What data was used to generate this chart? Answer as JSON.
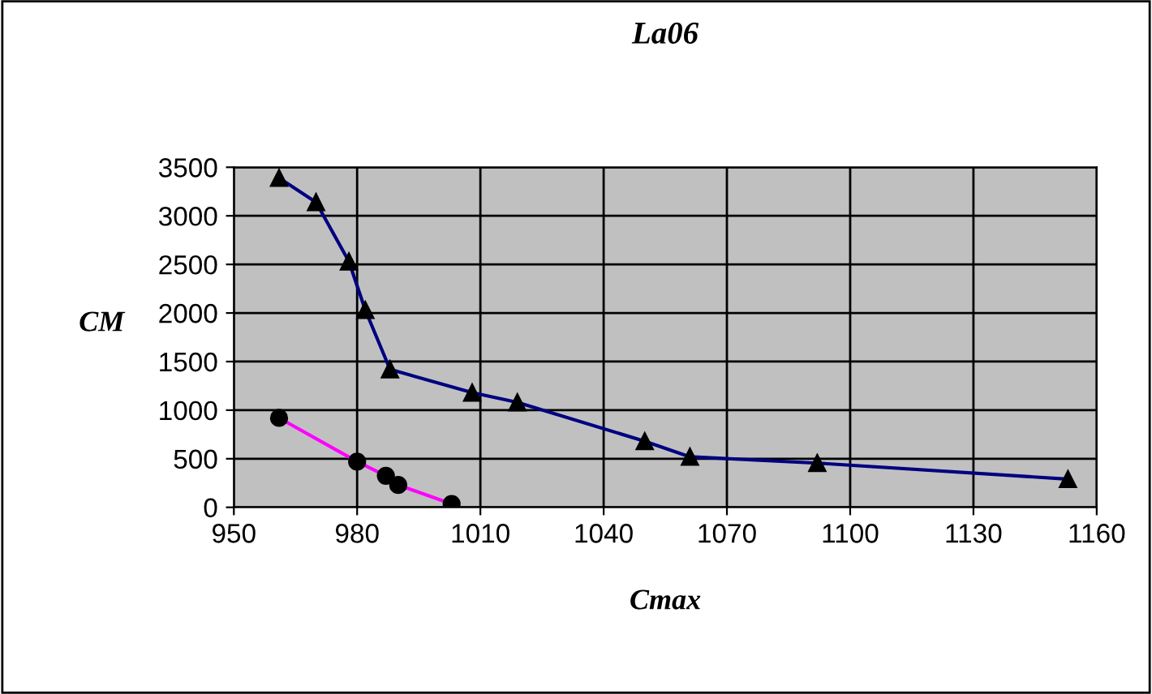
{
  "chart_data": {
    "type": "line",
    "title": "La06",
    "xlabel": "Cmax",
    "ylabel": "CM",
    "series": [
      {
        "color": "#000080",
        "marker": "triangle",
        "x": [
          961,
          970,
          978,
          982,
          988,
          1008,
          1019,
          1050,
          1061,
          1092,
          1153
        ],
        "values": [
          3390,
          3140,
          2530,
          2030,
          1420,
          1180,
          1080,
          680,
          520,
          455,
          290
        ]
      },
      {
        "color": "#ff00ff",
        "marker": "circle",
        "x": [
          961,
          980,
          987,
          990,
          1003
        ],
        "values": [
          920,
          470,
          325,
          230,
          35
        ]
      }
    ],
    "xlim": [
      950,
      1160
    ],
    "xticks": [
      950,
      980,
      1010,
      1040,
      1070,
      1100,
      1130,
      1160
    ],
    "ylim": [
      0,
      3500
    ],
    "yticks": [
      0,
      500,
      1000,
      1500,
      2000,
      2500,
      3000,
      3500
    ],
    "grid": true,
    "legend": false
  }
}
